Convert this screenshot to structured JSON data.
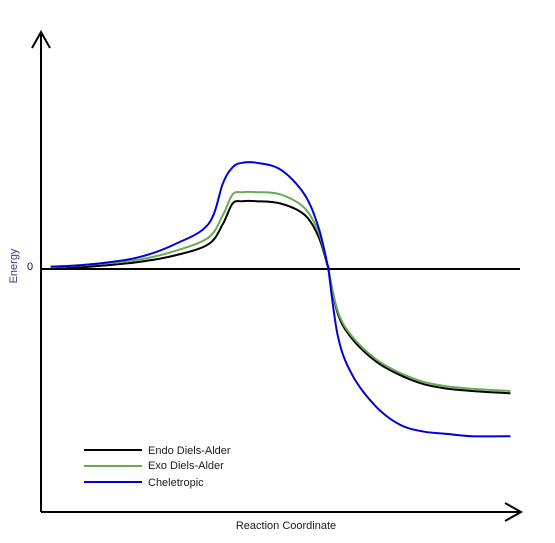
{
  "chart_data": {
    "type": "line",
    "title": "",
    "xlabel": "Reaction Coordinate",
    "ylabel": "Energy",
    "yticks": [
      {
        "value": 0,
        "label": "0"
      }
    ],
    "xlim": [
      0,
      1
    ],
    "ylim": [
      -1.0,
      1.0
    ],
    "grid": false,
    "legend_position": "bottom-left",
    "x": [
      0.02,
      0.1,
      0.2,
      0.28,
      0.35,
      0.38,
      0.4,
      0.42,
      0.45,
      0.5,
      0.55,
      0.58,
      0.6,
      0.6,
      0.62,
      0.65,
      0.7,
      0.75,
      0.8,
      0.85,
      0.9,
      0.98
    ],
    "series": [
      {
        "name": "Endo Diels-Alder",
        "color": "#000000",
        "values": [
          0.0,
          0.01,
          0.03,
          0.06,
          0.11,
          0.2,
          0.29,
          0.3,
          0.3,
          0.29,
          0.24,
          0.14,
          0.0,
          0.0,
          -0.2,
          -0.31,
          -0.41,
          -0.47,
          -0.51,
          -0.53,
          -0.54,
          -0.55
        ]
      },
      {
        "name": "Exo Diels-Alder",
        "color": "#6aaa55",
        "values": [
          0.01,
          0.02,
          0.04,
          0.08,
          0.14,
          0.24,
          0.33,
          0.34,
          0.34,
          0.33,
          0.27,
          0.16,
          0.0,
          0.0,
          -0.19,
          -0.3,
          -0.4,
          -0.46,
          -0.5,
          -0.52,
          -0.53,
          -0.54
        ]
      },
      {
        "name": "Cheletropic",
        "color": "#0000dd",
        "values": [
          0.01,
          0.02,
          0.05,
          0.11,
          0.2,
          0.38,
          0.45,
          0.47,
          0.47,
          0.44,
          0.33,
          0.18,
          0.0,
          0.0,
          -0.3,
          -0.47,
          -0.61,
          -0.69,
          -0.72,
          -0.73,
          -0.74,
          -0.74
        ]
      }
    ]
  }
}
